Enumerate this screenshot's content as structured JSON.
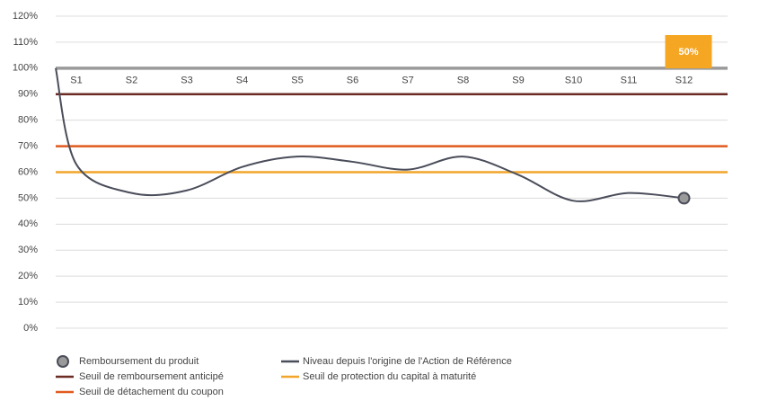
{
  "chart_data": {
    "type": "line",
    "categories": [
      null,
      "S1",
      "S2",
      "S3",
      "S4",
      "S5",
      "S6",
      "S7",
      "S8",
      "S9",
      "S10",
      "S11",
      "S12"
    ],
    "ylim": [
      0,
      120
    ],
    "yticks": [
      {
        "value": 0,
        "label": "0%"
      },
      {
        "value": 10,
        "label": "10%"
      },
      {
        "value": 20,
        "label": "20%"
      },
      {
        "value": 30,
        "label": "30%"
      },
      {
        "value": 40,
        "label": "40%"
      },
      {
        "value": 50,
        "label": "50%"
      },
      {
        "value": 60,
        "label": "60%"
      },
      {
        "value": 70,
        "label": "70%"
      },
      {
        "value": 80,
        "label": "80%"
      },
      {
        "value": 90,
        "label": "90%"
      },
      {
        "value": 100,
        "label": "100%"
      },
      {
        "value": 110,
        "label": "110%"
      },
      {
        "value": 120,
        "label": "120%"
      }
    ],
    "grid": true,
    "category_axis_at": 100,
    "series": [
      {
        "name": "Niveau depuis l'origine de l'Action de Référence",
        "color": "#4a4d5a",
        "values": [
          100,
          63,
          52,
          53,
          62,
          66,
          64,
          61,
          66,
          59,
          49,
          52,
          50
        ]
      },
      {
        "name": "Remboursement du produit",
        "color": "#9a9a9a",
        "values": [
          null,
          null,
          null,
          null,
          null,
          null,
          null,
          null,
          null,
          null,
          null,
          null,
          50
        ],
        "value_labels": [
          null,
          null,
          null,
          null,
          null,
          null,
          null,
          null,
          null,
          null,
          null,
          null,
          "50%"
        ],
        "label_color": "#f5a623"
      }
    ],
    "thresholds": [
      {
        "name": "Seuil de remboursement anticipé",
        "color": "#6b2a22",
        "value": 90
      },
      {
        "name": "Seuil de détachement du coupon",
        "color": "#e05a1e",
        "value": 70
      },
      {
        "name": "Seuil de protection du capital à maturité",
        "color": "#f2a52a",
        "value": 60
      }
    ]
  }
}
